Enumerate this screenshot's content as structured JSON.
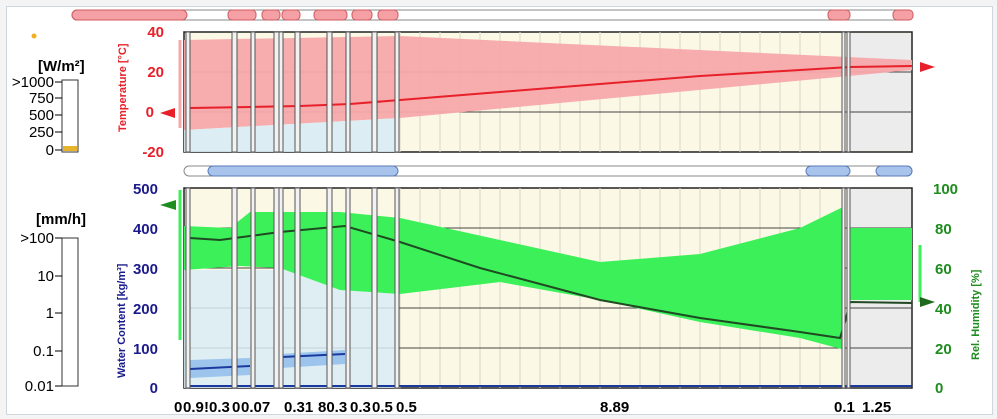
{
  "radiation_scale": {
    "unit": "[W/m²]",
    "labels": [
      ">1000",
      "750",
      "500",
      "250",
      "0"
    ]
  },
  "rain_scale": {
    "unit": "[mm/h]",
    "labels": [
      ">100",
      "10",
      "1",
      "0.1",
      "0.01"
    ]
  },
  "temperature_axis": {
    "label": "Temperature [°C]",
    "ticks": [
      "40",
      "20",
      "0",
      "-20"
    ],
    "color": "#e8202a"
  },
  "water_axis": {
    "label": "Water Content [kg/m³]",
    "ticks": [
      "500",
      "400",
      "300",
      "200",
      "100",
      "0"
    ],
    "color": "#1a1a8c"
  },
  "humidity_axis": {
    "label": "Rel. Humidity [%]",
    "ticks": [
      "100",
      "80",
      "60",
      "40",
      "20",
      "0"
    ],
    "color": "#1e8c1e"
  },
  "x_axis": {
    "labels": [
      "0",
      "0.9",
      "!0.3",
      "0",
      "0.07",
      "0.31",
      "80.3",
      "0.3",
      "0.5",
      "0.5",
      "8.89",
      "0.1",
      "1.25"
    ]
  },
  "colors": {
    "temp_band": "#f7a8ab",
    "temp_line": "#e8202a",
    "hum_band": "#3cf05a",
    "hum_line": "#1f4a22",
    "water_band": "#b8d4f0",
    "water_line": "#1a3aa0",
    "layer_bg": "#fbf8e6"
  }
}
